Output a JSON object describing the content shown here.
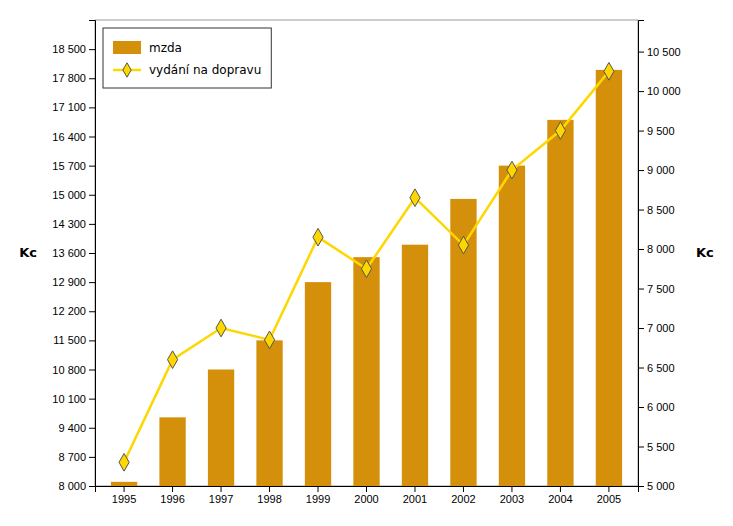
{
  "chart_data": {
    "type": "bar",
    "categories": [
      "1995",
      "1996",
      "1997",
      "1998",
      "1999",
      "2000",
      "2001",
      "2002",
      "2003",
      "2004",
      "2005"
    ],
    "series": [
      {
        "name": "mzda",
        "type": "bar",
        "color": "#D4900A",
        "values": [
          8100,
          9650,
          10800,
          11500,
          12900,
          13500,
          13800,
          14900,
          15700,
          16800,
          18000
        ]
      },
      {
        "name": "vydání na dopravu",
        "type": "line",
        "axis": "y2",
        "color": "#FFD700",
        "marker": "diamond",
        "values": [
          5300,
          6600,
          7000,
          6850,
          8150,
          7750,
          8650,
          8050,
          9000,
          9500,
          10250
        ]
      }
    ],
    "y_label": "Kc",
    "y2_label": "Kc",
    "ylim": [
      8000,
      19200
    ],
    "yticks": [
      {
        "value": 8000,
        "label": "8 000"
      },
      {
        "value": 8700,
        "label": "8 700"
      },
      {
        "value": 9400,
        "label": "9 400"
      },
      {
        "value": 10100,
        "label": "10 100"
      },
      {
        "value": 10800,
        "label": "10 800"
      },
      {
        "value": 11500,
        "label": "11 500"
      },
      {
        "value": 12200,
        "label": "12 200"
      },
      {
        "value": 12900,
        "label": "12 900"
      },
      {
        "value": 13600,
        "label": "13 600"
      },
      {
        "value": 14300,
        "label": "14 300"
      },
      {
        "value": 15000,
        "label": "15 000"
      },
      {
        "value": 15700,
        "label": "15 700"
      },
      {
        "value": 16400,
        "label": "16 400"
      },
      {
        "value": 17100,
        "label": "17 100"
      },
      {
        "value": 17800,
        "label": "17 800"
      },
      {
        "value": 18500,
        "label": "18 500"
      }
    ],
    "y2lim": [
      5000,
      10900
    ],
    "y2ticks": [
      {
        "value": 5000,
        "label": "5 000"
      },
      {
        "value": 5500,
        "label": "5 500"
      },
      {
        "value": 6000,
        "label": "6 000"
      },
      {
        "value": 6500,
        "label": "6 500"
      },
      {
        "value": 7000,
        "label": "7 000"
      },
      {
        "value": 7500,
        "label": "7 500"
      },
      {
        "value": 8000,
        "label": "8 000"
      },
      {
        "value": 8500,
        "label": "8 500"
      },
      {
        "value": 9000,
        "label": "9 000"
      },
      {
        "value": 9500,
        "label": "9 500"
      },
      {
        "value": 10000,
        "label": "10 000"
      },
      {
        "value": 10500,
        "label": "10 500"
      }
    ],
    "grid": false,
    "legend": "upper left"
  }
}
